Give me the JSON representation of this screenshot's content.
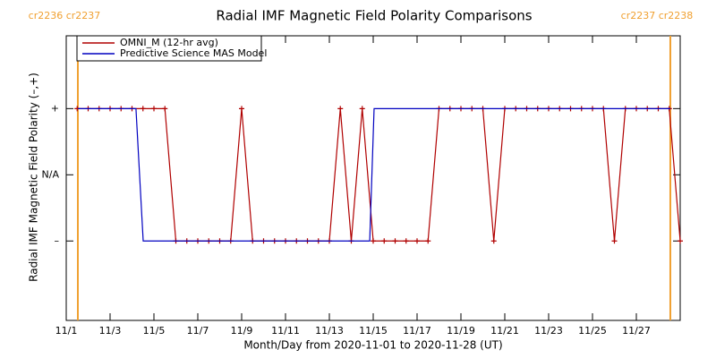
{
  "chart_data": {
    "type": "line",
    "title": "Radial IMF Magnetic Field Polarity Comparisons",
    "x_label": "Month/Day from 2020-11-01 to 2020-11-28 (UT)",
    "y_label": "Radial IMF Magnetic Field Polarity (–,+)",
    "xlim": [
      0,
      28
    ],
    "xticks": [
      {
        "value": 0,
        "label": "11/1"
      },
      {
        "value": 2,
        "label": "11/3"
      },
      {
        "value": 4,
        "label": "11/5"
      },
      {
        "value": 6,
        "label": "11/7"
      },
      {
        "value": 8,
        "label": "11/9"
      },
      {
        "value": 10,
        "label": "11/11"
      },
      {
        "value": 12,
        "label": "11/13"
      },
      {
        "value": 14,
        "label": "11/15"
      },
      {
        "value": 16,
        "label": "11/17"
      },
      {
        "value": 18,
        "label": "11/19"
      },
      {
        "value": 20,
        "label": "11/21"
      },
      {
        "value": 22,
        "label": "11/23"
      },
      {
        "value": 24,
        "label": "11/25"
      },
      {
        "value": 26,
        "label": "11/27"
      }
    ],
    "ylim": [
      -2.2,
      2.1
    ],
    "yticks": [
      {
        "value": -1,
        "label": "–"
      },
      {
        "value": 0,
        "label": "N/A"
      },
      {
        "value": 1,
        "label": "+"
      }
    ],
    "legend": "upper left",
    "series": [
      {
        "name": "OMNI_M (12-hr avg)",
        "color": "#b00000",
        "markers": true,
        "x": [
          0.5,
          1,
          1.5,
          2,
          2.5,
          3,
          3.5,
          4,
          4.5,
          5,
          5.5,
          6,
          6.5,
          7,
          7.5,
          8,
          8.5,
          9,
          9.5,
          10,
          10.5,
          11,
          11.5,
          12,
          12.5,
          13,
          13.5,
          14,
          14.5,
          15,
          15.5,
          16,
          16.5,
          17,
          17.5,
          18,
          18.5,
          19,
          19.5,
          20,
          20.5,
          21,
          21.5,
          22,
          22.5,
          23,
          23.5,
          24,
          24.5,
          25,
          25.5,
          26,
          26.5,
          27,
          27.5,
          28
        ],
        "values": [
          1,
          1,
          1,
          1,
          1,
          1,
          1,
          1,
          1,
          -1,
          -1,
          -1,
          -1,
          -1,
          -1,
          1,
          -1,
          -1,
          -1,
          -1,
          -1,
          -1,
          -1,
          -1,
          1,
          -1,
          1,
          -1,
          -1,
          -1,
          -1,
          -1,
          -1,
          1,
          1,
          1,
          1,
          1,
          -1,
          1,
          1,
          1,
          1,
          1,
          1,
          1,
          1,
          1,
          1,
          -1,
          1,
          1,
          1,
          1,
          1,
          -1
        ]
      },
      {
        "name": "Predictive Science MAS Model",
        "color": "#0000c0",
        "markers": false,
        "x": [
          0.53,
          3.18,
          3.51,
          13.84,
          14.04,
          27.55
        ],
        "values": [
          1,
          1,
          -1,
          -1,
          1,
          1
        ]
      }
    ],
    "carrington_boundaries": [
      {
        "x": 0.53,
        "label": "cr2236 cr2237"
      },
      {
        "x": 27.55,
        "label": "cr2237 cr2238"
      }
    ],
    "boundary_color": "#f0a030"
  }
}
